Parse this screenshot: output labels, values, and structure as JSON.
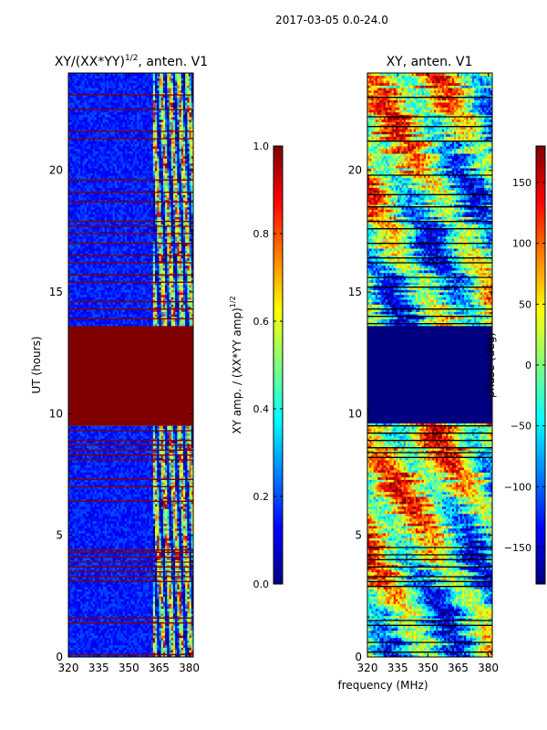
{
  "suptitle": "2017-03-05 0.0-24.0",
  "shared_xlabel": "frequency (MHz)",
  "colors": {
    "background": "#7f0000",
    "jet": [
      "#00007f",
      "#0000ff",
      "#007fff",
      "#00ffff",
      "#7fff7f",
      "#ffff00",
      "#ff7f00",
      "#ff0000",
      "#7f0000"
    ]
  },
  "chart_data": [
    {
      "type": "heatmap",
      "title": "XY/(XX*YY)",
      "title_superscript": "1/2",
      "title_suffix": ", anten. V1",
      "xlabel": "",
      "ylabel": "UT (hours)",
      "xlim": [
        320,
        382
      ],
      "ylim": [
        0,
        24
      ],
      "xticks": [
        320,
        335,
        350,
        365,
        380
      ],
      "yticks": [
        0,
        5,
        10,
        15,
        20
      ],
      "colorbar": {
        "label": "XY amp. / (XX*YY amp)",
        "label_superscript": "1/2",
        "range": [
          0.0,
          1.0
        ],
        "ticks": [
          "0.0",
          "0.2",
          "0.4",
          "0.6",
          "0.8",
          "1.0"
        ]
      },
      "features": {
        "uniform_block_hours": [
          9.5,
          13.6
        ],
        "uniform_block_value": 1.0,
        "low_signal_mhz": [
          320,
          362
        ],
        "low_signal_value": 0.15,
        "active_band_mhz": [
          362,
          382
        ],
        "active_band_value_range": [
          0.2,
          1.0
        ],
        "flagged_lines_hours": [
          0.1,
          1.4,
          1.6,
          3.1,
          3.3,
          3.5,
          3.7,
          3.9,
          4.1,
          4.3,
          4.4,
          6.4,
          7.0,
          7.3,
          8.1,
          8.3,
          8.5,
          8.7,
          8.9,
          9.3,
          13.9,
          14.3,
          14.6,
          15.4,
          15.7,
          16.2,
          16.5,
          17.0,
          17.4,
          17.7,
          17.9,
          18.7,
          19.1,
          19.6,
          21.3,
          21.6,
          22.5,
          23.1
        ]
      }
    },
    {
      "type": "heatmap",
      "title": "XY, anten. V1",
      "xlabel": "frequency (MHz)",
      "ylabel": "",
      "xlim": [
        320,
        382
      ],
      "ylim": [
        0,
        24
      ],
      "xticks": [
        320,
        335,
        350,
        365,
        380
      ],
      "yticks": [
        0,
        5,
        10,
        15,
        20
      ],
      "colorbar": {
        "label": "phase (deg)",
        "range": [
          -180,
          180
        ],
        "ticks": [
          "−150",
          "−100",
          "−50",
          "0",
          "50",
          "100",
          "150"
        ]
      },
      "features": {
        "uniform_block_hours": [
          9.6,
          13.6
        ],
        "uniform_block_value": -180,
        "value_range_deg": [
          -180,
          180
        ],
        "flagged_lines_hours": [
          0.2,
          0.6,
          1.3,
          1.5,
          2.9,
          3.1,
          3.3,
          3.7,
          4.0,
          4.2,
          4.5,
          8.2,
          8.4,
          8.6,
          8.9,
          9.2,
          9.5,
          13.7,
          14.0,
          14.3,
          15.2,
          15.6,
          16.2,
          16.4,
          17.0,
          17.6,
          17.9,
          18.5,
          19.0,
          19.8,
          21.2,
          21.8,
          22.2,
          23.0
        ]
      }
    }
  ]
}
